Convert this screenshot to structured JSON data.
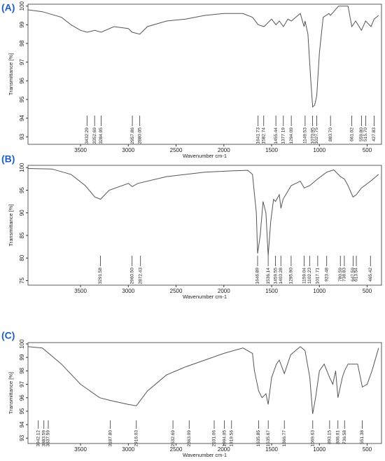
{
  "chart_data": [
    {
      "type": "line",
      "panel_label": "(A)",
      "xlabel": "Wavenumber cm-1",
      "ylabel": "Transmittance [%]",
      "xlim": [
        4050,
        350
      ],
      "xticks": [
        3500,
        3000,
        2500,
        2000,
        1500,
        1000,
        500
      ],
      "ylim": [
        92.6,
        100.1
      ],
      "yticks": [
        93,
        94,
        95,
        96,
        97,
        98,
        99,
        100
      ],
      "color": "#555555",
      "x": [
        4050,
        3900,
        3700,
        3600,
        3500,
        3430,
        3350,
        3285,
        3150,
        3000,
        2960,
        2880,
        2800,
        2600,
        2400,
        2200,
        2000,
        1800,
        1700,
        1640,
        1580,
        1500,
        1455,
        1420,
        1377,
        1330,
        1294,
        1200,
        1160,
        1150,
        1120,
        1090,
        1070,
        1050,
        1028,
        1000,
        960,
        900,
        884,
        800,
        700,
        661,
        620,
        560,
        516,
        460,
        428,
        380
      ],
      "values": [
        99.8,
        99.7,
        99.4,
        99.0,
        98.7,
        98.6,
        98.7,
        98.6,
        98.9,
        98.8,
        98.6,
        98.5,
        98.9,
        99.2,
        99.3,
        99.5,
        99.6,
        99.6,
        99.4,
        99.0,
        98.9,
        99.3,
        99.0,
        99.2,
        98.9,
        99.3,
        99.2,
        99.6,
        98.9,
        99.2,
        98.5,
        96.0,
        94.6,
        94.7,
        95.2,
        97.5,
        99.4,
        99.6,
        99.5,
        100,
        100,
        98.9,
        99.2,
        98.7,
        99.2,
        98.9,
        99.3,
        99.5
      ],
      "peak_labels": [
        3432.29,
        3352.69,
        3284.95,
        2957.86,
        2880.05,
        1641.73,
        1582.74,
        1455.44,
        1377.19,
        1294.09,
        1149.53,
        1070.95,
        1027.75,
        {
          "value": 883.7,
          "label": "883.70"
        },
        661.02,
        {
          "value": 559.8,
          "label": "559.80"
        },
        {
          "value": 515.7,
          "label": "515.70"
        },
        427.83
      ]
    },
    {
      "type": "line",
      "panel_label": "(B)",
      "xlabel": "Wavenumber cm-1",
      "ylabel": "Transmittance [%]",
      "xlim": [
        4050,
        350
      ],
      "xticks": [
        3500,
        3000,
        2500,
        2000,
        1500,
        1000,
        500
      ],
      "ylim": [
        74,
        100.5
      ],
      "yticks": [
        75,
        80,
        85,
        90,
        95,
        100
      ],
      "color": "#555555",
      "x": [
        4050,
        3800,
        3600,
        3450,
        3350,
        3291,
        3200,
        3000,
        2960,
        2900,
        2600,
        2200,
        1900,
        1750,
        1700,
        1660,
        1647,
        1620,
        1590,
        1560,
        1536,
        1510,
        1480,
        1459,
        1420,
        1403,
        1380,
        1296,
        1200,
        1159,
        1102,
        1018,
        923,
        850,
        780,
        739,
        700,
        648,
        614,
        560,
        465,
        380
      ],
      "values": [
        99.8,
        99.7,
        98.5,
        96,
        93.5,
        93,
        95,
        96.5,
        95.8,
        96.5,
        98,
        99,
        99.3,
        99.4,
        98.5,
        90,
        81,
        85,
        92.5,
        90,
        80.5,
        88,
        93,
        92.5,
        94,
        91,
        93,
        96,
        97,
        95.5,
        96,
        97.5,
        99,
        99.5,
        98,
        97.5,
        96,
        93.5,
        94,
        95.5,
        97,
        98.5
      ],
      "peak_labels": [
        3291.58,
        {
          "value": 2960.5,
          "label": "2960.50"
        },
        2872.43,
        1646.89,
        1536.14,
        1459.55,
        1403.28,
        {
          "value": 1295.9,
          "label": "1295.90"
        },
        1159.04,
        1102.23,
        1017.71,
        923.48,
        780.59,
        738.83,
        647.59,
        613.54,
        465.42
      ]
    },
    {
      "type": "line",
      "panel_label": "(C)",
      "xlabel": "Wavenumber cm-1",
      "ylabel": "Transmittance [%]",
      "xlim": [
        4050,
        350
      ],
      "xticks": [
        3500,
        3000,
        2500,
        2000,
        1500,
        1000,
        500
      ],
      "ylim": [
        92.6,
        100.1
      ],
      "yticks": [
        93,
        94,
        95,
        96,
        97,
        98,
        99,
        100
      ],
      "color": "#555555",
      "x": [
        4050,
        3900,
        3700,
        3500,
        3300,
        3188,
        3000,
        2916,
        2800,
        2600,
        2400,
        2200,
        2000,
        1800,
        1700,
        1680,
        1636,
        1600,
        1560,
        1536,
        1500,
        1450,
        1420,
        1367,
        1300,
        1200,
        1150,
        1100,
        1070,
        1040,
        1000,
        950,
        893,
        860,
        830,
        806,
        760,
        737,
        700,
        600,
        551,
        500,
        450,
        380
      ],
      "values": [
        99.8,
        99.7,
        98.5,
        97,
        96,
        95.8,
        95.5,
        95.4,
        96.5,
        97.7,
        98.3,
        98.8,
        99.3,
        99.7,
        99.3,
        98,
        96.5,
        96.0,
        96.3,
        95.5,
        97.5,
        98.5,
        98.8,
        97.8,
        99.2,
        99.8,
        99.5,
        97.5,
        94.8,
        96,
        98,
        98.5,
        97.5,
        97,
        98,
        96,
        97.5,
        98,
        98.5,
        98.5,
        96.8,
        97.0,
        98,
        99.7
      ],
      "peak_labels": [
        3942.12,
        3883.59,
        3837.59,
        {
          "value": 3187.8,
          "label": "3187.80"
        },
        2916.03,
        2532.69,
        2363.09,
        2101.06,
        1994.05,
        1919.56,
        1635.85,
        1535.67,
        1366.77,
        1069.63,
        893.15,
        806.01,
        736.58,
        551.38
      ]
    }
  ]
}
